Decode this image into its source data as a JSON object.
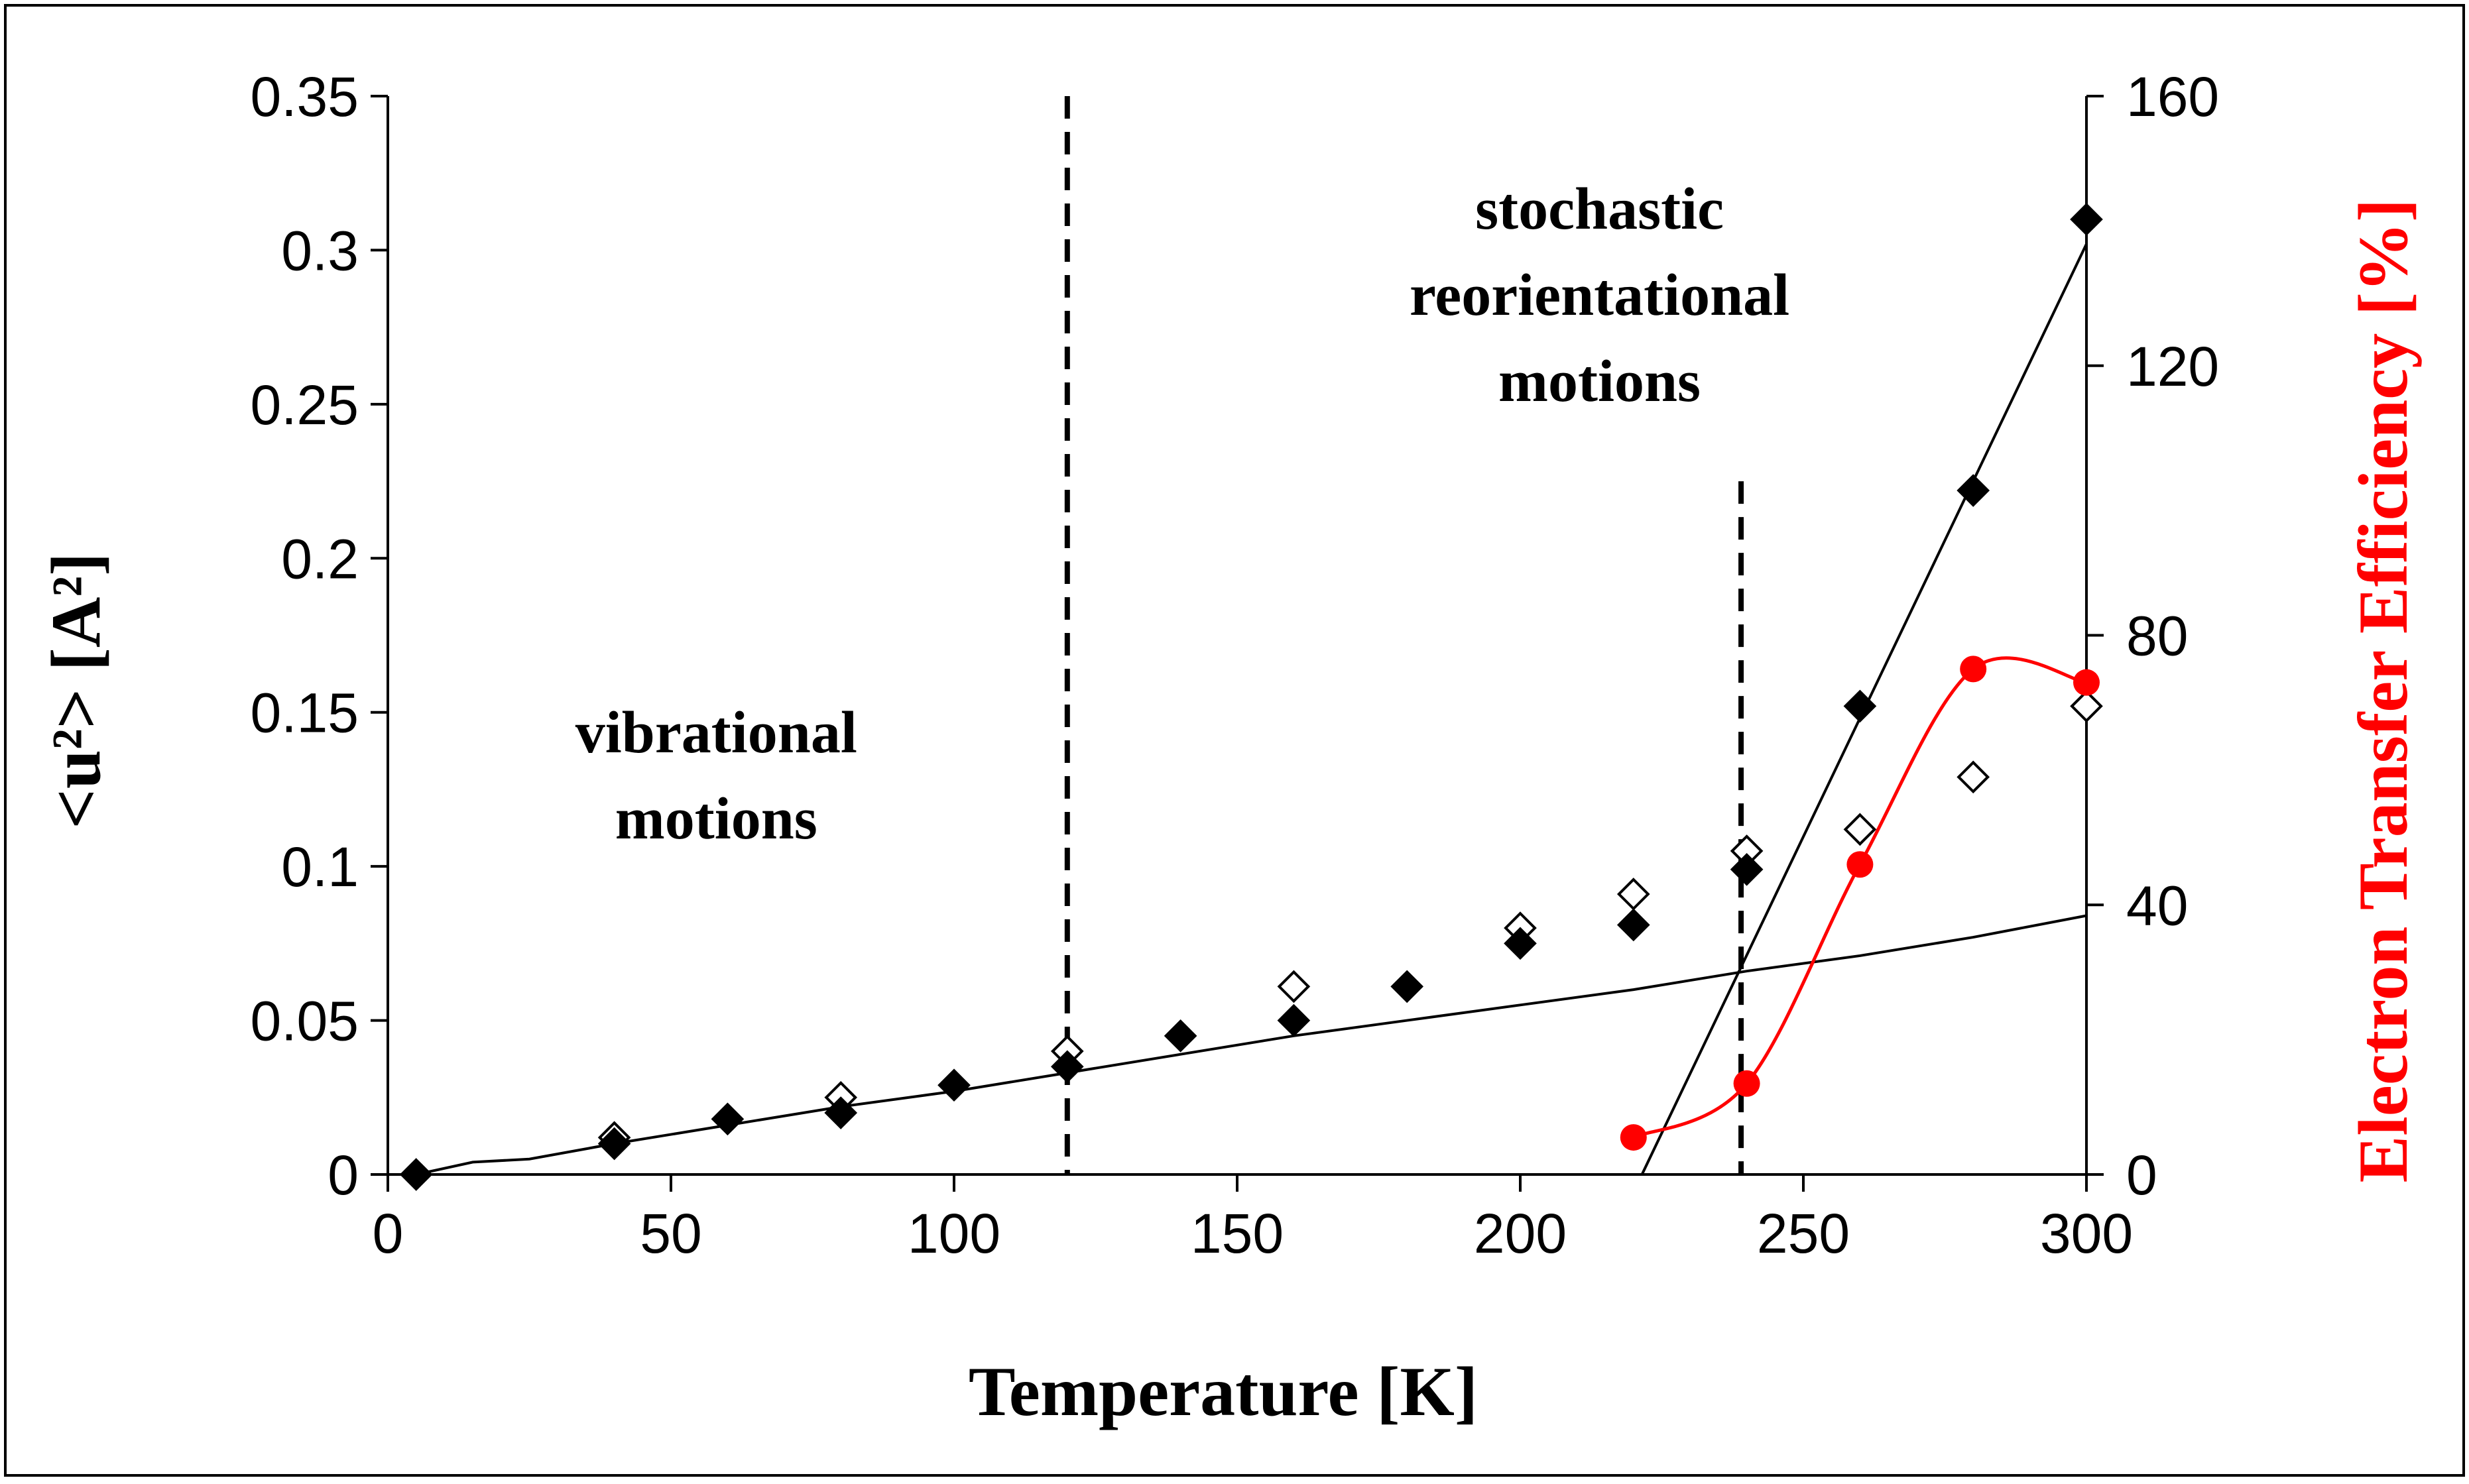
{
  "chart_data": {
    "type": "scatter",
    "xlabel": "Temperature [K]",
    "ylabel_left": "<u²> [A²]",
    "ylabel_right": "Electron Transfer Efficiency [%]",
    "xlim": [
      0,
      300
    ],
    "ylim_left": [
      0,
      0.35
    ],
    "ylim_right": [
      0,
      160
    ],
    "x_ticks": [
      0,
      50,
      100,
      150,
      200,
      250,
      300
    ],
    "x_tick_labels": [
      "0",
      "50",
      "100",
      "150",
      "200",
      "250",
      "300"
    ],
    "y_left_ticks": [
      0,
      0.05,
      0.1,
      0.15,
      0.2,
      0.25,
      0.3,
      0.35
    ],
    "y_left_tick_labels": [
      "0",
      "0.05",
      "0.1",
      "0.15",
      "0.2",
      "0.25",
      "0.3",
      "0.35"
    ],
    "y_right_ticks": [
      0,
      40,
      80,
      120,
      160
    ],
    "y_right_tick_labels": [
      "0",
      "40",
      "80",
      "120",
      "160"
    ],
    "grid": false,
    "series": [
      {
        "name": "filled diamonds",
        "axis": "left",
        "marker": "filled-diamond",
        "color": "#000000",
        "x": [
          5,
          40,
          60,
          80,
          100,
          120,
          140,
          160,
          180,
          200,
          220,
          240,
          260,
          280,
          300
        ],
        "y": [
          0.0,
          0.01,
          0.018,
          0.02,
          0.029,
          0.035,
          0.045,
          0.05,
          0.061,
          0.075,
          0.081,
          0.099,
          0.152,
          0.222,
          0.31
        ]
      },
      {
        "name": "open diamonds",
        "axis": "left",
        "marker": "open-diamond",
        "color": "#000000",
        "x": [
          40,
          80,
          120,
          160,
          200,
          220,
          240,
          260,
          280,
          300
        ],
        "y": [
          0.012,
          0.025,
          0.04,
          0.061,
          0.08,
          0.091,
          0.105,
          0.112,
          0.129,
          0.152
        ]
      },
      {
        "name": "electron transfer efficiency",
        "axis": "right",
        "marker": "filled-circle",
        "color": "#ff0000",
        "x": [
          220,
          240,
          260,
          280,
          300
        ],
        "y": [
          5.5,
          13.5,
          46,
          75,
          73
        ]
      },
      {
        "name": "vibrational fit",
        "axis": "left",
        "type": "line",
        "color": "#000000",
        "x": [
          5,
          15,
          25,
          40,
          60,
          80,
          100,
          120,
          140,
          160,
          180,
          200,
          220,
          240,
          260,
          280,
          300
        ],
        "y": [
          0.0,
          0.004,
          0.005,
          0.01,
          0.016,
          0.022,
          0.027,
          0.033,
          0.039,
          0.045,
          0.05,
          0.055,
          0.06,
          0.066,
          0.071,
          0.077,
          0.084
        ]
      },
      {
        "name": "high temperature fit",
        "axis": "left",
        "type": "line",
        "color": "#000000",
        "x": [
          221.5,
          300
        ],
        "y": [
          0.0,
          0.302
        ]
      }
    ],
    "reference_lines": [
      {
        "x": 120,
        "style": "dashed",
        "from": 0,
        "to": 0.35
      },
      {
        "x": 239,
        "style": "dashed",
        "from": 0,
        "to": 0.225
      }
    ],
    "annotations": [
      {
        "lines": [
          "vibrational",
          "motions"
        ],
        "x": 58,
        "y": 0.137
      },
      {
        "lines": [
          "stochastic",
          "reorientational",
          "motions"
        ],
        "x": 214,
        "y": 0.307
      }
    ],
    "colors": {
      "axis": "#000000",
      "secondary": "#ff0000",
      "background": "#ffffff"
    }
  }
}
